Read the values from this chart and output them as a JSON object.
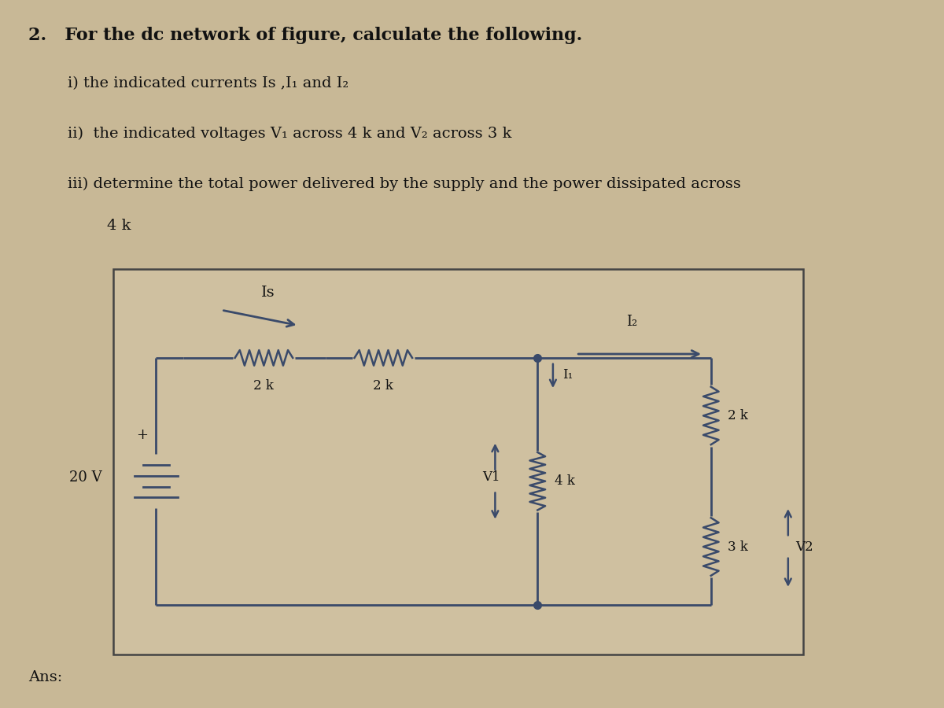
{
  "bg_color": "#c8b896",
  "box_bg": "#cfc0a0",
  "box_border": "#444444",
  "line_color": "#3a4a6a",
  "text_color": "#111111",
  "title_text": "2.   For the dc network of figure, calculate the following.",
  "item_i": "    i) the indicated currents Is ,I₁ and I₂",
  "item_ii": "    ii)  the indicated voltages V₁ across 4 k and V₂ across 3 k",
  "item_iii_line1": "    iii) determine the total power delivered by the supply and the power dissipated across",
  "item_iii_line2": "            4 k",
  "ans_text": "Ans:",
  "font_size_title": 16,
  "font_size_body": 14,
  "font_size_circuit": 12
}
